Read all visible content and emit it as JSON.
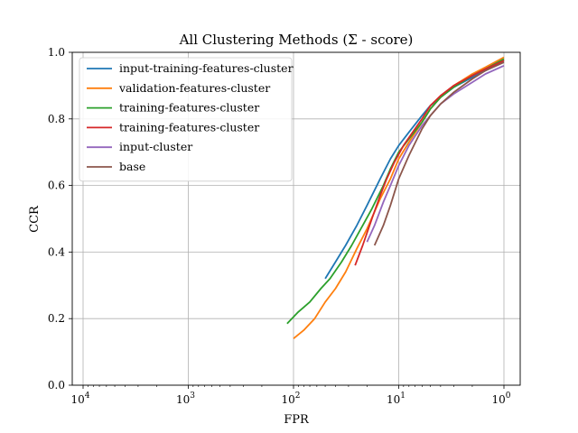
{
  "chart_data": {
    "type": "line",
    "title": "All Clustering Methods (Σ - score)",
    "xlabel": "FPR",
    "ylabel": "CCR",
    "x_scale": "log",
    "x_reversed": true,
    "xlim": [
      10000,
      1
    ],
    "ylim": [
      0.0,
      1.0
    ],
    "grid": true,
    "legend_position": "upper left",
    "x_tick_labels": [
      {
        "value": 10000,
        "base": "10",
        "exp": "4"
      },
      {
        "value": 1000,
        "base": "10",
        "exp": "3"
      },
      {
        "value": 100,
        "base": "10",
        "exp": "2"
      },
      {
        "value": 10,
        "base": "10",
        "exp": "1"
      },
      {
        "value": 1,
        "base": "10",
        "exp": "0"
      }
    ],
    "y_tick_labels": [
      {
        "value": 0.0,
        "label": "0.0"
      },
      {
        "value": 0.2,
        "label": "0.2"
      },
      {
        "value": 0.4,
        "label": "0.4"
      },
      {
        "value": 0.6,
        "label": "0.6"
      },
      {
        "value": 0.8,
        "label": "0.8"
      },
      {
        "value": 1.0,
        "label": "1.0"
      }
    ],
    "series": [
      {
        "name": "input-training-features-cluster",
        "color": "#1f77b4",
        "x": [
          50,
          40,
          32,
          25,
          20,
          15,
          12,
          10,
          8,
          6,
          5,
          4,
          3,
          2,
          1.5,
          1
        ],
        "y": [
          0.32,
          0.37,
          0.42,
          0.48,
          0.54,
          0.62,
          0.68,
          0.72,
          0.76,
          0.81,
          0.84,
          0.865,
          0.895,
          0.925,
          0.945,
          0.975
        ]
      },
      {
        "name": "validation-features-cluster",
        "color": "#ff7f0e",
        "x": [
          100,
          80,
          63,
          50,
          40,
          32,
          25,
          20,
          15,
          12,
          10,
          8,
          6,
          5,
          4,
          3,
          2,
          1.5,
          1
        ],
        "y": [
          0.14,
          0.165,
          0.2,
          0.25,
          0.29,
          0.34,
          0.41,
          0.47,
          0.56,
          0.62,
          0.68,
          0.73,
          0.79,
          0.83,
          0.865,
          0.9,
          0.935,
          0.955,
          0.985
        ]
      },
      {
        "name": "training-features-cluster",
        "color": "#2ca02c",
        "x": [
          115,
          90,
          70,
          55,
          45,
          35,
          28,
          22,
          18,
          14,
          12,
          10,
          8,
          6,
          5,
          4,
          3,
          2,
          1.5,
          1
        ],
        "y": [
          0.185,
          0.22,
          0.25,
          0.29,
          0.32,
          0.37,
          0.42,
          0.48,
          0.53,
          0.6,
          0.65,
          0.7,
          0.74,
          0.79,
          0.83,
          0.865,
          0.895,
          0.93,
          0.95,
          0.98
        ]
      },
      {
        "name": "training-features-cluster",
        "color": "#d62728",
        "x": [
          26,
          22,
          18,
          15,
          13,
          11,
          9,
          7,
          6,
          5,
          4,
          3,
          2,
          1.5,
          1
        ],
        "y": [
          0.36,
          0.42,
          0.5,
          0.57,
          0.62,
          0.67,
          0.72,
          0.77,
          0.8,
          0.84,
          0.87,
          0.9,
          0.93,
          0.95,
          0.975
        ]
      },
      {
        "name": "input-cluster",
        "color": "#9467bd",
        "x": [
          20,
          17,
          14,
          12,
          10,
          8,
          6,
          5,
          4,
          3,
          2,
          1.5,
          1
        ],
        "y": [
          0.43,
          0.48,
          0.55,
          0.6,
          0.66,
          0.72,
          0.78,
          0.81,
          0.845,
          0.875,
          0.91,
          0.935,
          0.96
        ]
      },
      {
        "name": "base",
        "color": "#8c564b",
        "x": [
          17,
          14,
          12,
          10,
          8,
          6,
          5,
          4,
          3,
          2,
          1.5,
          1
        ],
        "y": [
          0.42,
          0.48,
          0.54,
          0.62,
          0.69,
          0.77,
          0.81,
          0.845,
          0.88,
          0.92,
          0.945,
          0.97
        ]
      }
    ]
  }
}
